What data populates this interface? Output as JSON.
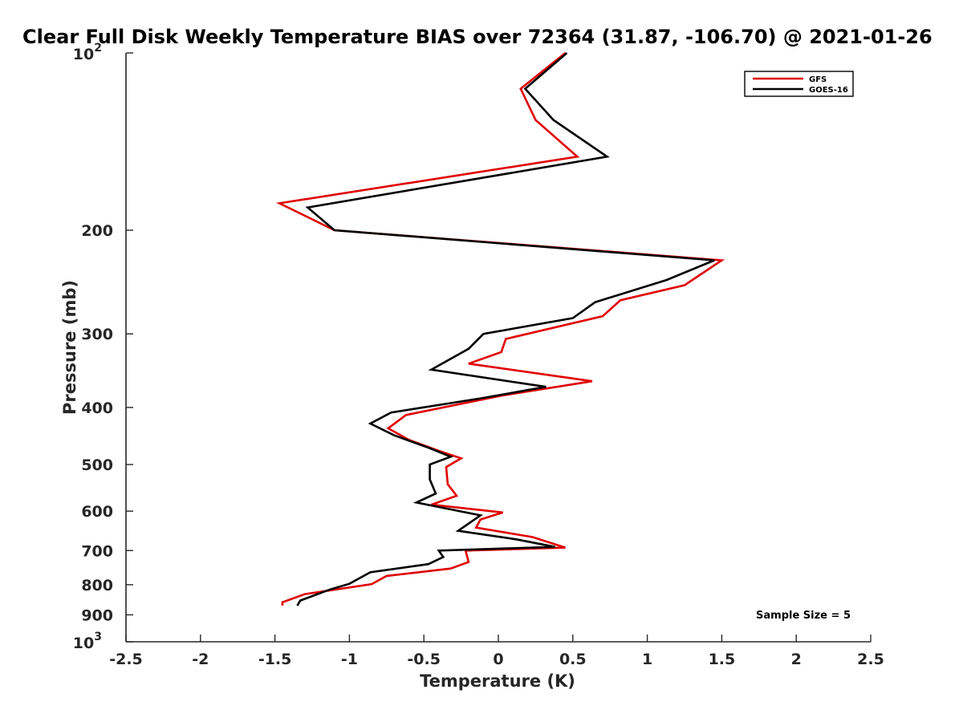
{
  "chart_data": {
    "type": "line",
    "title": "Clear Full Disk Weekly Temperature BIAS over 72364 (31.87, -106.70) @ 2021-01-26",
    "xlabel": "Temperature (K)",
    "ylabel": "Pressure (mb)",
    "xlim": [
      -2.5,
      2.5
    ],
    "ylim": [
      100,
      1000
    ],
    "y_scale": "log",
    "y_reversed": true,
    "x_ticks": [
      "-2.5",
      "-2",
      "-1.5",
      "-1",
      "-0.5",
      "0",
      "0.5",
      "1",
      "1.5",
      "2",
      "2.5"
    ],
    "y_ticks": [
      {
        "value": 100,
        "base": "10",
        "exp": "2"
      },
      {
        "value": 200,
        "label": "200"
      },
      {
        "value": 300,
        "label": "300"
      },
      {
        "value": 400,
        "label": "400"
      },
      {
        "value": 500,
        "label": "500"
      },
      {
        "value": 600,
        "label": "600"
      },
      {
        "value": 700,
        "label": "700"
      },
      {
        "value": 800,
        "label": "800"
      },
      {
        "value": 900,
        "label": "900"
      },
      {
        "value": 1000,
        "base": "10",
        "exp": "3"
      }
    ],
    "legend_position": "top-right",
    "annotation": "Sample Size = 5",
    "series": [
      {
        "name": "GFS",
        "color": "#e00000",
        "points": [
          [
            0.45,
            100
          ],
          [
            0.15,
            115
          ],
          [
            0.25,
            130
          ],
          [
            0.53,
            150
          ],
          [
            -1.47,
            180
          ],
          [
            -1.1,
            200
          ],
          [
            1.5,
            225
          ],
          [
            1.25,
            248
          ],
          [
            0.82,
            263
          ],
          [
            0.7,
            280
          ],
          [
            0.05,
            306
          ],
          [
            0.02,
            322
          ],
          [
            -0.2,
            337
          ],
          [
            0.63,
            361
          ],
          [
            0.02,
            382
          ],
          [
            -0.62,
            412
          ],
          [
            -0.74,
            434
          ],
          [
            -0.6,
            454
          ],
          [
            -0.4,
            474
          ],
          [
            -0.25,
            488
          ],
          [
            -0.35,
            505
          ],
          [
            -0.34,
            540
          ],
          [
            -0.28,
            565
          ],
          [
            -0.45,
            585
          ],
          [
            0.03,
            603
          ],
          [
            -0.12,
            620
          ],
          [
            -0.15,
            640
          ],
          [
            0.23,
            664
          ],
          [
            0.45,
            692
          ],
          [
            -0.22,
            700
          ],
          [
            -0.2,
            732
          ],
          [
            -0.32,
            751
          ],
          [
            -0.75,
            773
          ],
          [
            -0.85,
            798
          ],
          [
            -1.3,
            830
          ],
          [
            -1.45,
            857
          ],
          [
            -1.45,
            868
          ]
        ]
      },
      {
        "name": "GOES-16",
        "color": "#000000",
        "points": [
          [
            0.46,
            100
          ],
          [
            0.18,
            115
          ],
          [
            0.37,
            130
          ],
          [
            0.73,
            150
          ],
          [
            -1.28,
            183
          ],
          [
            -1.1,
            200
          ],
          [
            1.45,
            225
          ],
          [
            1.13,
            243
          ],
          [
            0.65,
            265
          ],
          [
            0.5,
            282
          ],
          [
            -0.1,
            300
          ],
          [
            -0.2,
            318
          ],
          [
            -0.45,
            345
          ],
          [
            0.32,
            369
          ],
          [
            -0.12,
            386
          ],
          [
            -0.72,
            408
          ],
          [
            -0.86,
            426
          ],
          [
            -0.7,
            446
          ],
          [
            -0.47,
            468
          ],
          [
            -0.32,
            485
          ],
          [
            -0.46,
            500
          ],
          [
            -0.46,
            530
          ],
          [
            -0.42,
            560
          ],
          [
            -0.55,
            580
          ],
          [
            -0.12,
            610
          ],
          [
            -0.2,
            630
          ],
          [
            -0.27,
            648
          ],
          [
            0.12,
            670
          ],
          [
            0.38,
            690
          ],
          [
            -0.4,
            700
          ],
          [
            -0.37,
            718
          ],
          [
            -0.47,
            738
          ],
          [
            -0.86,
            762
          ],
          [
            -1.0,
            797
          ],
          [
            -1.13,
            815
          ],
          [
            -1.33,
            851
          ],
          [
            -1.35,
            868
          ]
        ]
      }
    ]
  }
}
